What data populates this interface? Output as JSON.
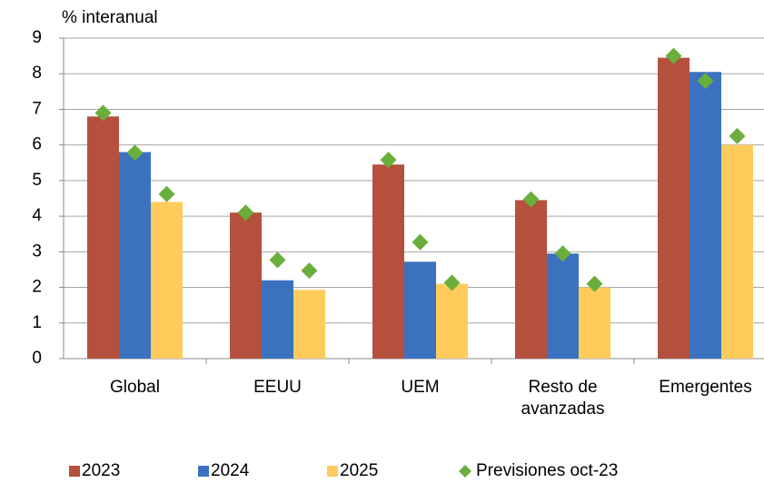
{
  "chart_data": {
    "type": "bar",
    "y_label": "% interanual",
    "categories": [
      "Global",
      "EEUU",
      "UEM",
      "Resto de avanzadas",
      "Emergentes"
    ],
    "series": [
      {
        "name": "2023",
        "color": "#b5503c",
        "values": [
          6.8,
          4.1,
          5.45,
          4.45,
          8.45
        ]
      },
      {
        "name": "2024",
        "color": "#3a72c0",
        "values": [
          5.8,
          2.2,
          2.72,
          2.95,
          8.05
        ]
      },
      {
        "name": "2025",
        "color": "#ffcc5c",
        "values": [
          4.4,
          1.93,
          2.1,
          2.0,
          6.0
        ]
      }
    ],
    "forecast": {
      "name": "Previsiones oct-23",
      "color": "#6aae3c",
      "values": [
        [
          6.9,
          4.1,
          5.58,
          4.47,
          8.5
        ],
        [
          5.78,
          2.77,
          3.27,
          2.95,
          7.8
        ],
        [
          4.62,
          2.47,
          2.13,
          2.1,
          6.25
        ]
      ]
    },
    "ylim": [
      0,
      9
    ],
    "yticks": [
      0,
      1,
      2,
      3,
      4,
      5,
      6,
      7,
      8,
      9
    ],
    "grid": true
  }
}
